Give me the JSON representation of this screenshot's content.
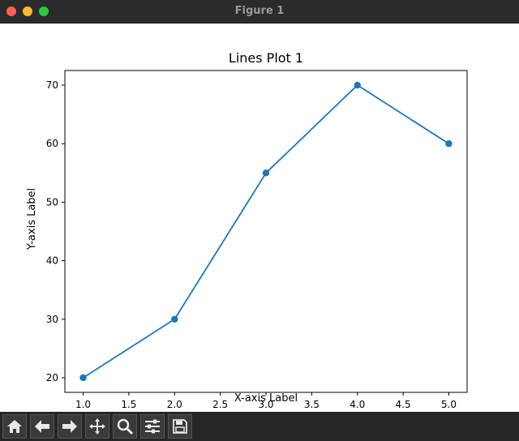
{
  "window": {
    "title": "Figure 1"
  },
  "toolbar": {
    "buttons": [
      {
        "icon": "home-icon"
      },
      {
        "icon": "back-arrow-icon"
      },
      {
        "icon": "forward-arrow-icon"
      },
      {
        "icon": "pan-icon"
      },
      {
        "icon": "zoom-icon"
      },
      {
        "icon": "subplots-config-icon"
      },
      {
        "icon": "save-icon"
      }
    ]
  },
  "chart_data": {
    "type": "line",
    "title": "Lines Plot 1",
    "xlabel": "X-axis Label",
    "ylabel": "Y-axis Label",
    "x": [
      1.0,
      2.0,
      3.0,
      4.0,
      5.0
    ],
    "y": [
      20,
      30,
      55,
      70,
      60
    ],
    "xlim": [
      0.8,
      5.2
    ],
    "ylim": [
      17.5,
      72.5
    ],
    "xticks": [
      "1.0",
      "1.5",
      "2.0",
      "2.5",
      "3.0",
      "3.5",
      "4.0",
      "4.5",
      "5.0"
    ],
    "yticks": [
      "20",
      "30",
      "40",
      "50",
      "60",
      "70"
    ],
    "line_color": "#1f77b4",
    "markers": true,
    "grid": false
  }
}
